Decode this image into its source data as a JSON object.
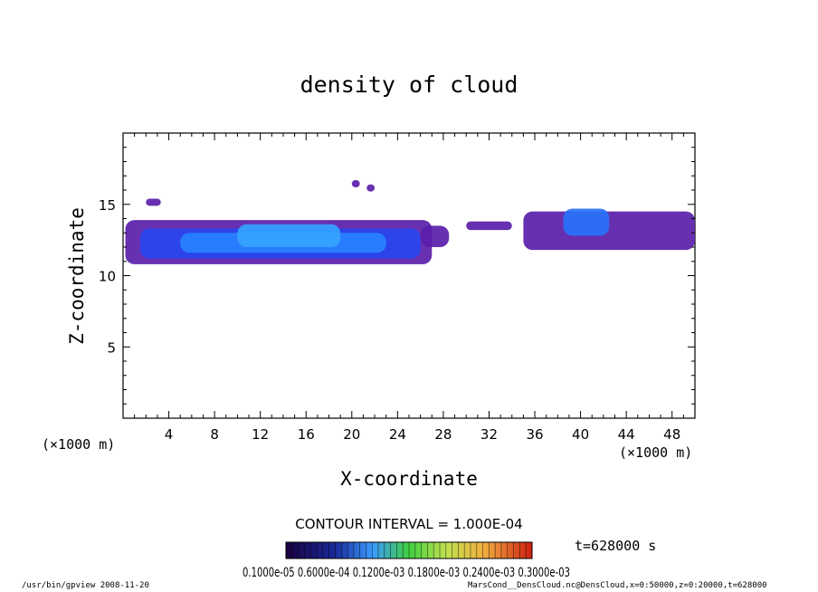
{
  "chart_data": {
    "type": "heatmap",
    "title": "density of cloud",
    "xlabel": "X-coordinate",
    "ylabel": "Z-coordinate",
    "x_unit_left": "(×1000 m)",
    "x_unit_right": "(×1000 m)",
    "xlim": [
      0,
      50
    ],
    "ylim": [
      0,
      20
    ],
    "xticks": [
      4,
      8,
      12,
      16,
      20,
      24,
      28,
      32,
      36,
      40,
      44,
      48
    ],
    "xtick_labels": [
      "4",
      "8",
      "12",
      "16",
      "20",
      "24",
      "28",
      "32",
      "36",
      "40",
      "44",
      "48"
    ],
    "yticks": [
      5,
      10,
      15
    ],
    "ytick_labels": [
      "5",
      "10",
      "15"
    ],
    "contour_interval_text": "CONTOUR INTERVAL = 1.000E-04",
    "colorbar_labels_text": "0.1000e-05 0.6000e-04 0.1200e-03 0.1800e-03 0.2400e-03 0.3000e-03",
    "colorbar_suffix": "-03",
    "time_text": "t=628000 s",
    "regions": [
      {
        "x0": 0.2,
        "x1": 27.0,
        "z0": 10.8,
        "z1": 13.9,
        "level": 0.15
      },
      {
        "x0": 1.5,
        "x1": 26.0,
        "z0": 11.2,
        "z1": 13.3,
        "level": 0.55
      },
      {
        "x0": 5.0,
        "x1": 23.0,
        "z0": 11.6,
        "z1": 13.0,
        "level": 0.75
      },
      {
        "x0": 10.0,
        "x1": 19.0,
        "z0": 12.0,
        "z1": 13.6,
        "level": 0.85
      },
      {
        "x0": 26.0,
        "x1": 28.5,
        "z0": 12.0,
        "z1": 13.5,
        "level": 0.15
      },
      {
        "x0": 30.0,
        "x1": 34.0,
        "z0": 13.2,
        "z1": 13.8,
        "level": 0.15
      },
      {
        "x0": 35.0,
        "x1": 50.0,
        "z0": 11.8,
        "z1": 14.5,
        "level": 0.15
      },
      {
        "x0": 38.5,
        "x1": 42.5,
        "z0": 12.8,
        "z1": 14.7,
        "level": 0.7
      },
      {
        "x0": 2.0,
        "x1": 3.3,
        "z0": 14.9,
        "z1": 15.4,
        "level": 0.15
      },
      {
        "x0": 20.0,
        "x1": 20.7,
        "z0": 16.2,
        "z1": 16.7,
        "level": 0.15
      },
      {
        "x0": 21.3,
        "x1": 22.0,
        "z0": 15.9,
        "z1": 16.4,
        "level": 0.15
      }
    ]
  },
  "footer": {
    "left": "/usr/bin/gpview  2008-11-20",
    "right": "MarsCond__DensCloud.nc@DensCloud,x=0:50000,z=0:20000,t=628000"
  }
}
